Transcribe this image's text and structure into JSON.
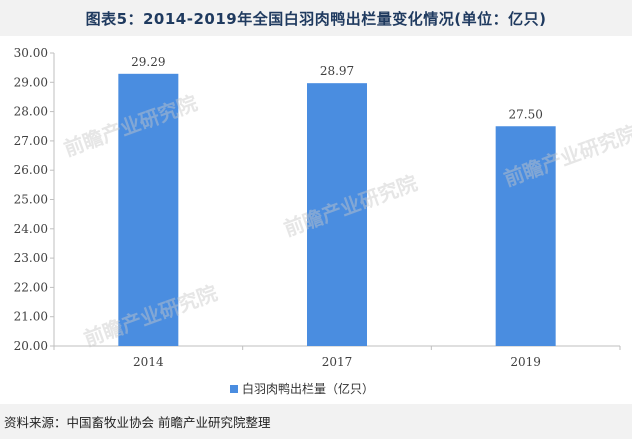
{
  "title": "图表5：2014-2019年全国白羽肉鸭出栏量变化情况(单位：亿只)",
  "source": "资料来源：中国畜牧业协会 前瞻产业研究院整理",
  "watermark": "前瞻产业研究院",
  "colors": {
    "bar": "#4a8de0",
    "axis": "#bfbfbf",
    "label": "#404040"
  },
  "chart_data": {
    "type": "bar",
    "categories": [
      "2014",
      "2017",
      "2019"
    ],
    "series": [
      {
        "name": "白羽肉鸭出栏量（亿只）",
        "values": [
          29.29,
          28.97,
          27.5
        ]
      }
    ],
    "value_labels": [
      "29.29",
      "28.97",
      "27.50"
    ],
    "ylim": [
      20.0,
      30.0
    ],
    "yticks": [
      "20.00",
      "21.00",
      "22.00",
      "23.00",
      "24.00",
      "25.00",
      "26.00",
      "27.00",
      "28.00",
      "29.00",
      "30.00"
    ],
    "grid": false,
    "legend_position": "bottom"
  }
}
